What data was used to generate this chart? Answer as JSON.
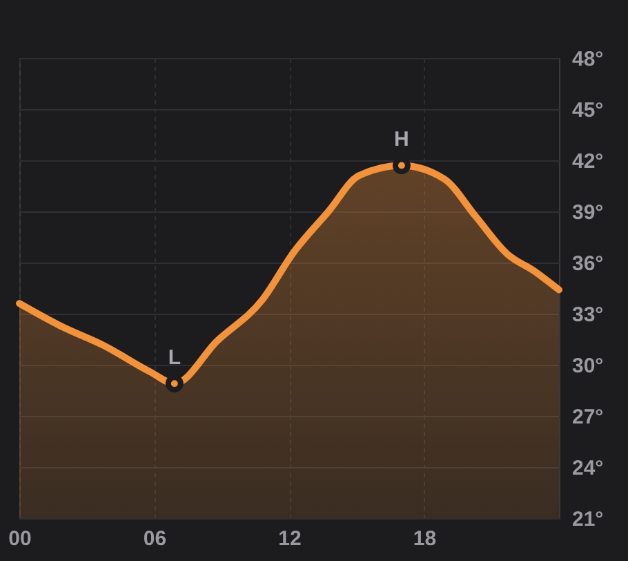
{
  "chart_data": {
    "type": "area",
    "x": [
      0,
      1.8,
      3.8,
      5.8,
      6.9,
      8.8,
      10.8,
      12.2,
      13.75,
      15.1,
      17,
      18.9,
      20.3,
      21.7,
      22.9,
      24
    ],
    "series": [
      {
        "color": "#f2923a",
        "values": [
          33.6,
          32.3,
          31.1,
          29.6,
          28.9,
          31.4,
          33.8,
          36.6,
          39.0,
          41.1,
          41.7,
          40.9,
          38.7,
          36.5,
          35.5,
          34.4
        ]
      }
    ],
    "xlim": [
      0,
      24
    ],
    "xticks": [
      {
        "value": 0,
        "label": "00"
      },
      {
        "value": 6,
        "label": "06"
      },
      {
        "value": 12,
        "label": "12"
      },
      {
        "value": 18,
        "label": "18"
      }
    ],
    "ylim": [
      21,
      48
    ],
    "yticks": [
      {
        "value": 21,
        "label": "21°"
      },
      {
        "value": 24,
        "label": "24°"
      },
      {
        "value": 27,
        "label": "27°"
      },
      {
        "value": 30,
        "label": "30°"
      },
      {
        "value": 33,
        "label": "33°"
      },
      {
        "value": 36,
        "label": "36°"
      },
      {
        "value": 39,
        "label": "39°"
      },
      {
        "value": 42,
        "label": "42°"
      },
      {
        "value": 45,
        "label": "45°"
      },
      {
        "value": 48,
        "label": "48°"
      }
    ],
    "grid": true,
    "line_style": "solid",
    "annotations": [
      {
        "text": "L",
        "x": 6.9,
        "y": 28.9
      },
      {
        "text": "H",
        "x": 17,
        "y": 41.7
      }
    ]
  }
}
